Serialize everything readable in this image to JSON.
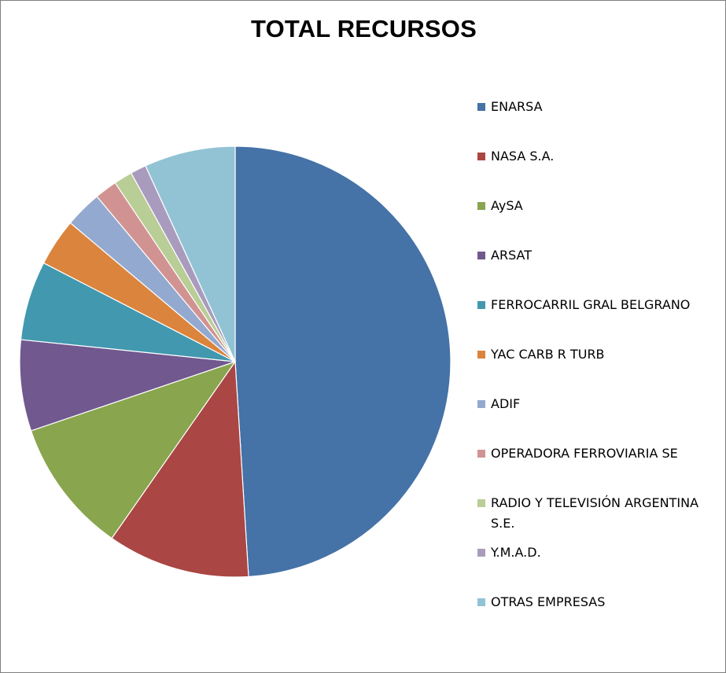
{
  "chart_data": {
    "type": "pie",
    "title": "TOTAL RECURSOS",
    "legend_position": "right",
    "slices": [
      {
        "label": "ENARSA",
        "value": 49.5,
        "color": "#4572A7"
      },
      {
        "label": "NASA S.A.",
        "value": 10.8,
        "color": "#AA4643"
      },
      {
        "label": "AySA",
        "value": 10.2,
        "color": "#89A54E"
      },
      {
        "label": "ARSAT",
        "value": 6.9,
        "color": "#71588F"
      },
      {
        "label": "FERROCARRIL GRAL BELGRANO",
        "value": 6.0,
        "color": "#4198AF"
      },
      {
        "label": "YAC CARB R TURB",
        "value": 3.6,
        "color": "#DB843D"
      },
      {
        "label": "ADIF",
        "value": 2.8,
        "color": "#93A9CF"
      },
      {
        "label": "OPERADORA FERROVIARIA SE",
        "value": 1.7,
        "color": "#D19392"
      },
      {
        "label": "RADIO Y TELEVISIÓN ARGENTINA S.E.",
        "value": 1.4,
        "color": "#B9CD96"
      },
      {
        "label": "Y.M.A.D.",
        "value": 1.2,
        "color": "#A99BBD"
      },
      {
        "label": "OTRAS EMPRESAS",
        "value": 6.9,
        "color": "#92C3D4"
      }
    ]
  }
}
